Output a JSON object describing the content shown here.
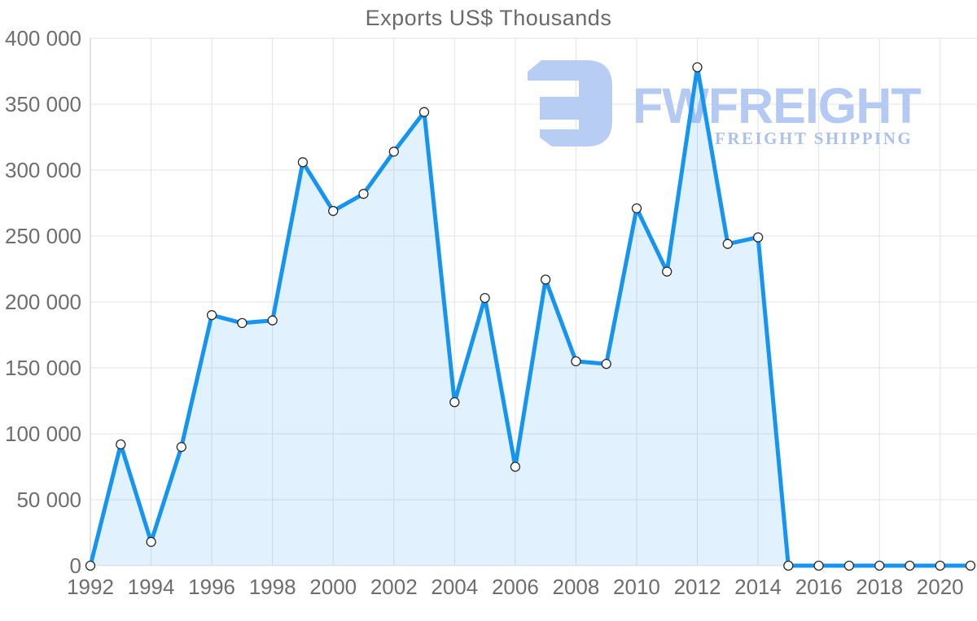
{
  "chart_data": {
    "type": "area",
    "title": "Exports US$ Thousands",
    "x": [
      1992,
      1993,
      1994,
      1995,
      1996,
      1997,
      1998,
      1999,
      2000,
      2001,
      2002,
      2003,
      2004,
      2005,
      2006,
      2007,
      2008,
      2009,
      2010,
      2011,
      2012,
      2013,
      2014,
      2015,
      2016,
      2017,
      2018,
      2019,
      2020,
      2021
    ],
    "series": [
      {
        "name": "Exports US$ Thousands",
        "values": [
          0,
          92000,
          18000,
          90000,
          190000,
          184000,
          186000,
          306000,
          269000,
          282000,
          314000,
          344000,
          124000,
          203000,
          75000,
          217000,
          155000,
          153000,
          271000,
          223000,
          378000,
          244000,
          249000,
          0,
          0,
          0,
          0,
          0,
          0,
          0
        ]
      }
    ],
    "ylim": [
      0,
      400000
    ],
    "y_tick_labels": [
      "0",
      "50 000",
      "100 000",
      "150 000",
      "200 000",
      "250 000",
      "300 000",
      "350 000",
      "400 000"
    ],
    "y_tick_values": [
      0,
      50000,
      100000,
      150000,
      200000,
      250000,
      300000,
      350000,
      400000
    ],
    "x_tick_labels": [
      "1992",
      "1994",
      "1996",
      "1998",
      "2000",
      "2002",
      "2004",
      "2006",
      "2008",
      "2010",
      "2012",
      "2014",
      "2016",
      "2018",
      "2020"
    ],
    "grid": true,
    "legend_position": "none",
    "colors": {
      "line": "#1695f0",
      "fill": "rgba(21,149,240,0.13)",
      "marker_fill": "#ffffff",
      "marker_stroke": "#2b2b2b",
      "grid": "#e3e3e3",
      "axis_line": "#c6c6c6",
      "tick_text": "#6e6e6e",
      "title_text": "#6a6a6a"
    }
  },
  "watermark": {
    "brand": "FWFREIGHT",
    "tagline": "FREIGHT SHIPPING",
    "brand_color": "#b5caf2",
    "tagline_color": "#a9c1ee",
    "mark_color": "#b7cdf3"
  }
}
